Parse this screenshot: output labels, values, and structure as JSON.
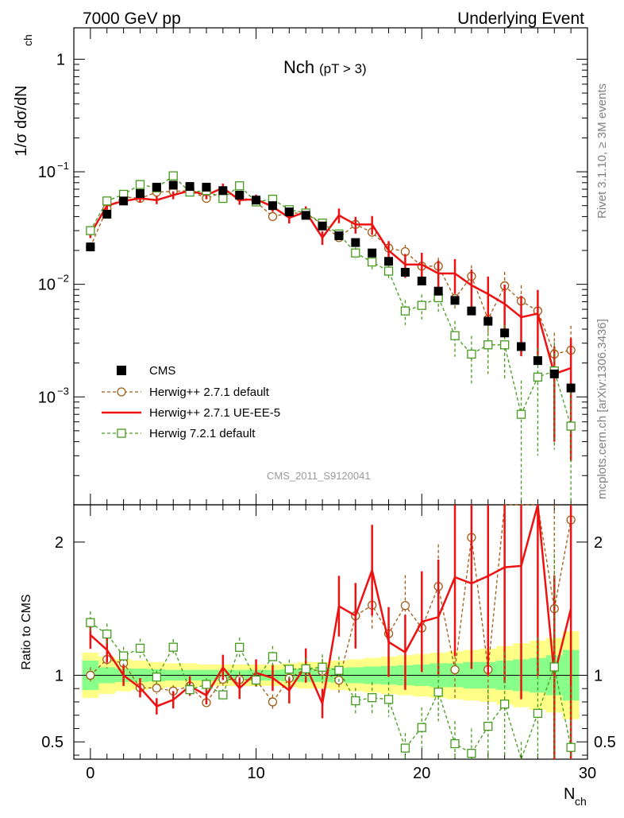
{
  "header": {
    "left": "7000 GeV pp",
    "right": "Underlying Event"
  },
  "side_labels": {
    "rivet": "Rivet 3.1.10, ≥ 3M events",
    "source": "mcplots.cern.ch [arXiv:1306.3436]"
  },
  "chart_data": {
    "type": "line",
    "title": "Nch",
    "subtitle": "(pT >  3)",
    "watermark": "CMS_2011_S9120041",
    "xlabel": "N",
    "xlabel_sub": "ch",
    "ylabel": "1/σ dσ/dN",
    "ylabel_sub": "ch",
    "ratio_ylabel": "Ratio to CMS",
    "xlim": [
      -1,
      30
    ],
    "ylim": [
      0.00011,
      1.9
    ],
    "ratio_ylim": [
      0.37,
      2.28
    ],
    "x_ticks": [
      0,
      10,
      20,
      30
    ],
    "y_ticks": [
      {
        "value": 1,
        "base": "1",
        "exp": ""
      },
      {
        "value": 0.1,
        "base": "10",
        "exp": "−1"
      },
      {
        "value": 0.01,
        "base": "10",
        "exp": "−2"
      },
      {
        "value": 0.001,
        "base": "10",
        "exp": "−3"
      }
    ],
    "ratio_ticks": [
      0.5,
      1,
      2
    ],
    "x": [
      0,
      1,
      2,
      3,
      4,
      5,
      6,
      7,
      8,
      9,
      10,
      11,
      12,
      13,
      14,
      15,
      16,
      17,
      18,
      19,
      20,
      21,
      22,
      23,
      24,
      25,
      26,
      27,
      28,
      29
    ],
    "series": [
      {
        "name": "CMS",
        "color": "#000000",
        "style": "data",
        "values": [
          0.0215,
          0.042,
          0.055,
          0.064,
          0.073,
          0.076,
          0.074,
          0.073,
          0.068,
          0.062,
          0.056,
          0.05,
          0.044,
          0.041,
          0.033,
          0.027,
          0.0235,
          0.019,
          0.016,
          0.0128,
          0.0107,
          0.0087,
          0.0072,
          0.0058,
          0.0047,
          0.0037,
          0.0028,
          0.0021,
          0.0016,
          0.0012
        ],
        "band_stat": [
          0.11,
          0.06,
          0.05,
          0.05,
          0.045,
          0.04,
          0.04,
          0.04,
          0.04,
          0.04,
          0.04,
          0.04,
          0.045,
          0.05,
          0.05,
          0.055,
          0.06,
          0.065,
          0.07,
          0.075,
          0.08,
          0.09,
          0.09,
          0.1,
          0.1,
          0.11,
          0.12,
          0.13,
          0.15,
          0.19
        ],
        "band_tot": [
          0.17,
          0.14,
          0.12,
          0.11,
          0.1,
          0.09,
          0.09,
          0.08,
          0.08,
          0.08,
          0.08,
          0.08,
          0.09,
          0.1,
          0.1,
          0.11,
          0.12,
          0.13,
          0.14,
          0.15,
          0.16,
          0.17,
          0.18,
          0.19,
          0.2,
          0.22,
          0.24,
          0.26,
          0.28,
          0.33
        ]
      },
      {
        "name": "Herwig++ 2.7.1 default",
        "color": "#a05a14",
        "style": "circle-dashed",
        "values": [
          0.0215,
          0.047,
          0.06,
          0.058,
          0.066,
          0.067,
          0.068,
          0.058,
          0.066,
          0.06,
          0.054,
          0.04,
          0.043,
          0.043,
          0.034,
          0.026,
          0.034,
          0.029,
          0.021,
          0.0195,
          0.0145,
          0.0145,
          0.0075,
          0.0118,
          0.0049,
          0.0097,
          0.0071,
          0.0058,
          0.0024,
          0.0026
        ],
        "err_frac": [
          0.06,
          0.06,
          0.06,
          0.06,
          0.05,
          0.05,
          0.05,
          0.05,
          0.05,
          0.06,
          0.06,
          0.07,
          0.07,
          0.08,
          0.09,
          0.1,
          0.11,
          0.12,
          0.14,
          0.15,
          0.17,
          0.19,
          0.22,
          0.25,
          0.29,
          0.33,
          0.38,
          0.45,
          0.55,
          0.65
        ]
      },
      {
        "name": "Herwig++ 2.7.1 UE-EE-5",
        "color": "#ee1111",
        "style": "solid",
        "values": [
          0.028,
          0.05,
          0.055,
          0.058,
          0.056,
          0.062,
          0.068,
          0.062,
          0.072,
          0.056,
          0.057,
          0.049,
          0.039,
          0.044,
          0.026,
          0.041,
          0.034,
          0.034,
          0.02,
          0.015,
          0.015,
          0.0125,
          0.0125,
          0.0098,
          0.0082,
          0.0067,
          0.0051,
          0.0055,
          0.0016,
          0.0018
        ],
        "err_frac": [
          0.08,
          0.08,
          0.08,
          0.08,
          0.08,
          0.08,
          0.08,
          0.08,
          0.09,
          0.09,
          0.1,
          0.1,
          0.11,
          0.12,
          0.14,
          0.15,
          0.17,
          0.19,
          0.21,
          0.24,
          0.27,
          0.3,
          0.34,
          0.38,
          0.43,
          0.48,
          0.55,
          0.62,
          0.75,
          0.85
        ]
      },
      {
        "name": "Herwig 7.2.1 default",
        "color": "#449a1e",
        "style": "square-dashed",
        "values": [
          0.03,
          0.055,
          0.063,
          0.077,
          0.072,
          0.092,
          0.066,
          0.068,
          0.058,
          0.075,
          0.054,
          0.057,
          0.046,
          0.043,
          0.035,
          0.028,
          0.019,
          0.0158,
          0.0131,
          0.0058,
          0.0065,
          0.0076,
          0.0035,
          0.0024,
          0.0029,
          0.0029,
          0.0007,
          0.0015,
          0.0017,
          0.00055
        ],
        "err_frac": [
          0.06,
          0.06,
          0.06,
          0.06,
          0.05,
          0.05,
          0.05,
          0.05,
          0.05,
          0.06,
          0.06,
          0.07,
          0.07,
          0.08,
          0.09,
          0.1,
          0.12,
          0.14,
          0.16,
          0.25,
          0.25,
          0.25,
          0.35,
          0.45,
          0.45,
          0.5,
          1.0,
          0.8,
          0.8,
          1.0
        ]
      }
    ]
  }
}
